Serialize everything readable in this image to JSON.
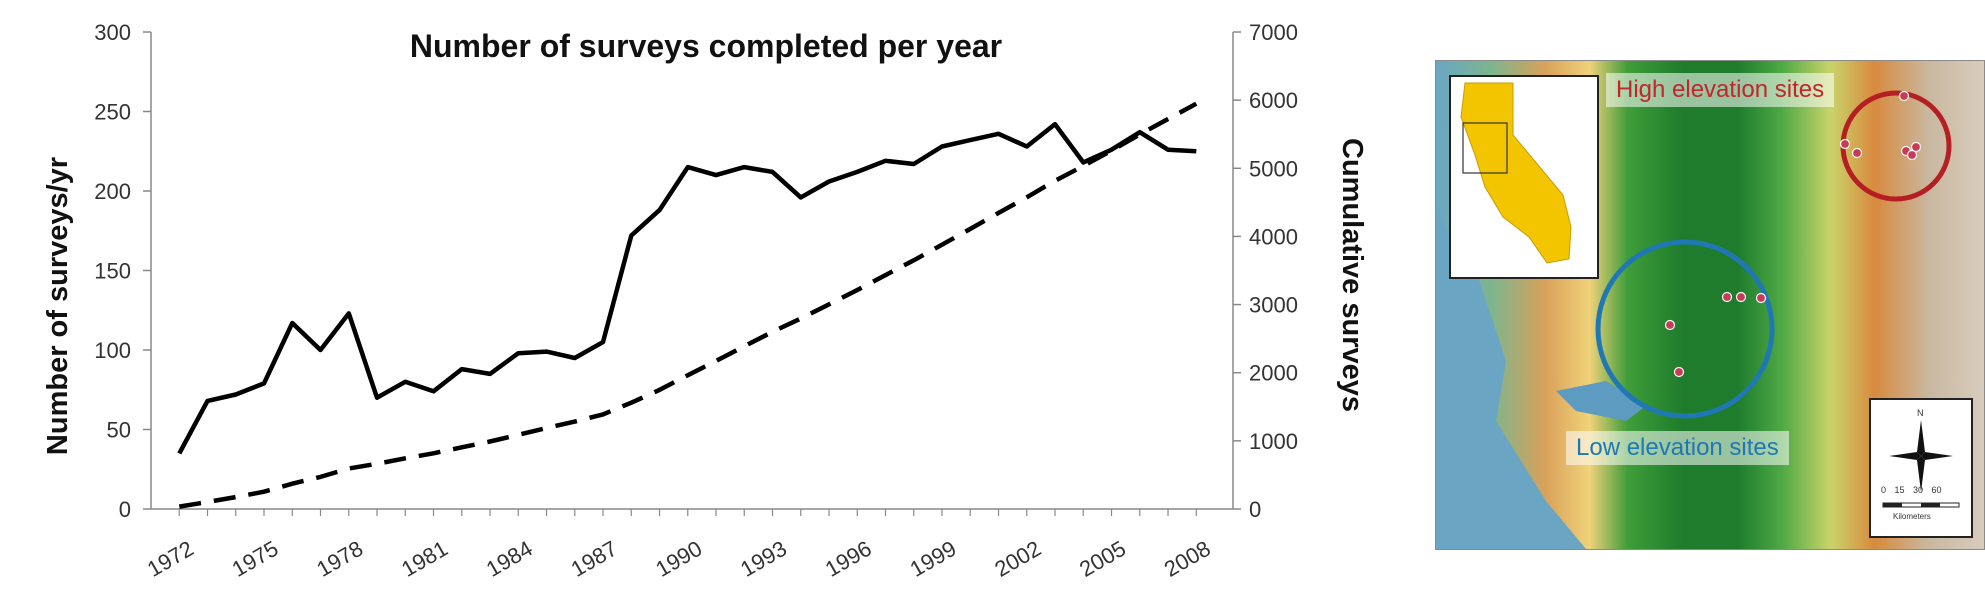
{
  "chart_data": {
    "type": "line",
    "title": "Number of surveys completed per year",
    "xlabel": "",
    "ylabel": "Number of surveys/yr",
    "y2label": "Cumulative surveys",
    "x_tick_labels": [
      "1972",
      "1975",
      "1978",
      "1981",
      "1984",
      "1987",
      "1990",
      "1993",
      "1996",
      "1999",
      "2002",
      "2005",
      "2008"
    ],
    "ylim": [
      0,
      300
    ],
    "y_ticks": [
      0,
      50,
      100,
      150,
      200,
      250,
      300
    ],
    "y2lim": [
      0,
      7000
    ],
    "y2_ticks": [
      0,
      1000,
      2000,
      3000,
      4000,
      5000,
      6000,
      7000
    ],
    "grid": false,
    "legend": "none",
    "series": [
      {
        "axis": "left",
        "style": "solid",
        "color": "#000000",
        "x": [
          1972,
          1973,
          1974,
          1975,
          1976,
          1977,
          1978,
          1979,
          1980,
          1981,
          1982,
          1983,
          1984,
          1985,
          1986,
          1987,
          1988,
          1989,
          1990,
          1991,
          1992,
          1993,
          1994,
          1995,
          1996,
          1997,
          1998,
          1999,
          2000,
          2001,
          2002,
          2003,
          2004,
          2005,
          2006,
          2007,
          2008
        ],
        "values": [
          35,
          68,
          72,
          79,
          117,
          100,
          123,
          70,
          80,
          74,
          88,
          85,
          98,
          99,
          95,
          105,
          172,
          188,
          215,
          210,
          215,
          212,
          196,
          206,
          212,
          219,
          217,
          228,
          232,
          236,
          228,
          242,
          218,
          226,
          237,
          226,
          225
        ]
      },
      {
        "axis": "right",
        "style": "dashed",
        "color": "#000000",
        "x": [
          1972,
          1973,
          1974,
          1975,
          1976,
          1977,
          1978,
          1979,
          1980,
          1981,
          1982,
          1983,
          1984,
          1985,
          1986,
          1987,
          1988,
          1989,
          1990,
          1991,
          1992,
          1993,
          1994,
          1995,
          1996,
          1997,
          1998,
          1999,
          2000,
          2001,
          2002,
          2003,
          2004,
          2005,
          2006,
          2007,
          2008
        ],
        "values": [
          35,
          103,
          175,
          254,
          371,
          471,
          594,
          664,
          744,
          818,
          906,
          991,
          1089,
          1188,
          1283,
          1388,
          1560,
          1748,
          1963,
          2173,
          2388,
          2600,
          2796,
          3002,
          3214,
          3433,
          3650,
          3878,
          4110,
          4346,
          4574,
          4816,
          5034,
          5260,
          5497,
          5723,
          5948
        ]
      }
    ]
  },
  "map": {
    "high_label": "High elevation sites",
    "low_label": "Low elevation sites",
    "north_letter": "N",
    "scale_ticks": "0 15 30 60",
    "scale_unit": "Kilometers",
    "colors": {
      "high_ring": "#b51f24",
      "low_ring": "#1f78b4",
      "ocean": "#6aa6c4",
      "california": "#f2c500",
      "site_dot": "#c93a56"
    }
  }
}
